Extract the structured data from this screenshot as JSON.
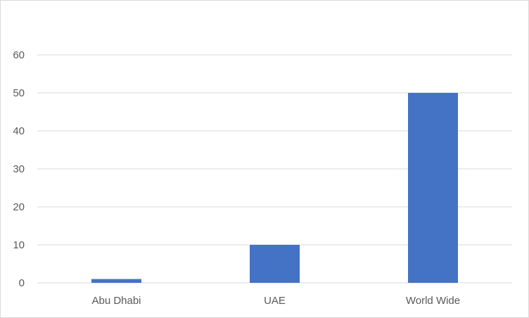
{
  "chart_data": {
    "type": "bar",
    "categories": [
      "Abu Dhabi",
      "UAE",
      "World Wide"
    ],
    "values": [
      1,
      10,
      50
    ],
    "ylim": [
      0,
      60
    ],
    "yticks": [
      0,
      10,
      20,
      30,
      40,
      50,
      60
    ],
    "grid": true,
    "legend": "none",
    "bar_color": "#4472c4",
    "grid_color": "#d9d9d9",
    "text_color": "#595959"
  }
}
